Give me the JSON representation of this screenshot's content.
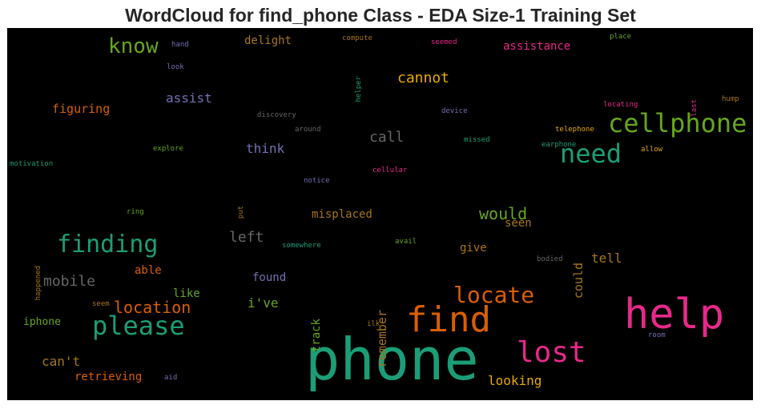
{
  "chart_data": {
    "type": "wordcloud",
    "title": "WordCloud for find_phone Class - EDA Size-1 Training Set",
    "background": "#000000",
    "words": [
      {
        "text": "phone",
        "color": "#1b9e77",
        "weight": 1.0
      },
      {
        "text": "help",
        "color": "#e7298a",
        "weight": 0.82
      },
      {
        "text": "find",
        "color": "#d95f02",
        "weight": 0.72
      },
      {
        "text": "cellphone",
        "color": "#66a61e",
        "weight": 0.55
      },
      {
        "text": "lost",
        "color": "#e7298a",
        "weight": 0.6
      },
      {
        "text": "need",
        "color": "#1b9e77",
        "weight": 0.55
      },
      {
        "text": "please",
        "color": "#1b9e77",
        "weight": 0.55
      },
      {
        "text": "finding",
        "color": "#1b9e77",
        "weight": 0.5
      },
      {
        "text": "locate",
        "color": "#d95f02",
        "weight": 0.45
      },
      {
        "text": "know",
        "color": "#66a61e",
        "weight": 0.45
      },
      {
        "text": "location",
        "color": "#d95f02",
        "weight": 0.35
      },
      {
        "text": "mobile",
        "color": "#666666",
        "weight": 0.3
      },
      {
        "text": "cannot",
        "color": "#e6ab02",
        "weight": 0.3
      },
      {
        "text": "would",
        "color": "#66a61e",
        "weight": 0.33
      },
      {
        "text": "call",
        "color": "#666666",
        "weight": 0.3
      },
      {
        "text": "left",
        "color": "#666666",
        "weight": 0.28
      },
      {
        "text": "looking",
        "color": "#e6ab02",
        "weight": 0.25
      },
      {
        "text": "think",
        "color": "#7570b3",
        "weight": 0.27
      },
      {
        "text": "assist",
        "color": "#7570b3",
        "weight": 0.27
      },
      {
        "text": "remember",
        "color": "#a6761d",
        "weight": 0.25
      },
      {
        "text": "could",
        "color": "#a6761d",
        "weight": 0.25
      },
      {
        "text": "tell",
        "color": "#a6761d",
        "weight": 0.25
      },
      {
        "text": "can't",
        "color": "#a6761d",
        "weight": 0.25
      },
      {
        "text": "i've",
        "color": "#66a61e",
        "weight": 0.25
      },
      {
        "text": "track",
        "color": "#66a61e",
        "weight": 0.22
      },
      {
        "text": "figuring",
        "color": "#d95f02",
        "weight": 0.23
      },
      {
        "text": "retrieving",
        "color": "#d95f02",
        "weight": 0.22
      },
      {
        "text": "misplaced",
        "color": "#a6761d",
        "weight": 0.22
      },
      {
        "text": "assistance",
        "color": "#e7298a",
        "weight": 0.22
      },
      {
        "text": "delight",
        "color": "#a6761d",
        "weight": 0.22
      },
      {
        "text": "give",
        "color": "#a6761d",
        "weight": 0.22
      },
      {
        "text": "seen",
        "color": "#a6761d",
        "weight": 0.22
      },
      {
        "text": "found",
        "color": "#7570b3",
        "weight": 0.22
      },
      {
        "text": "able",
        "color": "#d95f02",
        "weight": 0.22
      },
      {
        "text": "like",
        "color": "#66a61e",
        "weight": 0.22
      },
      {
        "text": "iphone",
        "color": "#66a61e",
        "weight": 0.2
      },
      {
        "text": "telephone",
        "color": "#e6ab02",
        "weight": 0.12
      },
      {
        "text": "earphone",
        "color": "#1b9e77",
        "weight": 0.12
      },
      {
        "text": "allow",
        "color": "#e6ab02",
        "weight": 0.12
      },
      {
        "text": "missed",
        "color": "#1b9e77",
        "weight": 0.12
      },
      {
        "text": "device",
        "color": "#7570b3",
        "weight": 0.12
      },
      {
        "text": "locating",
        "color": "#e7298a",
        "weight": 0.12
      },
      {
        "text": "last",
        "color": "#e7298a",
        "weight": 0.12
      },
      {
        "text": "hump",
        "color": "#a6761d",
        "weight": 0.12
      },
      {
        "text": "discovery",
        "color": "#666666",
        "weight": 0.12
      },
      {
        "text": "around",
        "color": "#666666",
        "weight": 0.12
      },
      {
        "text": "explore",
        "color": "#66a61e",
        "weight": 0.12
      },
      {
        "text": "motivation",
        "color": "#1b9e77",
        "weight": 0.12
      },
      {
        "text": "cellular",
        "color": "#e7298a",
        "weight": 0.12
      },
      {
        "text": "notice",
        "color": "#7570b3",
        "weight": 0.12
      },
      {
        "text": "ring",
        "color": "#66a61e",
        "weight": 0.12
      },
      {
        "text": "put",
        "color": "#a6761d",
        "weight": 0.12
      },
      {
        "text": "happened",
        "color": "#a6761d",
        "weight": 0.12
      },
      {
        "text": "somewhere",
        "color": "#1b9e77",
        "weight": 0.12
      },
      {
        "text": "avail",
        "color": "#66a61e",
        "weight": 0.12
      },
      {
        "text": "bodied",
        "color": "#666666",
        "weight": 0.12
      },
      {
        "text": "seem",
        "color": "#a6761d",
        "weight": 0.12
      },
      {
        "text": "ilk",
        "color": "#a6761d",
        "weight": 0.12
      },
      {
        "text": "aid",
        "color": "#7570b3",
        "weight": 0.12
      },
      {
        "text": "room",
        "color": "#7570b3",
        "weight": 0.12
      },
      {
        "text": "hand",
        "color": "#7570b3",
        "weight": 0.12
      },
      {
        "text": "look",
        "color": "#7570b3",
        "weight": 0.12
      },
      {
        "text": "helper",
        "color": "#1b9e77",
        "weight": 0.12
      },
      {
        "text": "compute",
        "color": "#a6761d",
        "weight": 0.12
      },
      {
        "text": "seemed",
        "color": "#e7298a",
        "weight": 0.12
      },
      {
        "text": "place",
        "color": "#66a61e",
        "weight": 0.12
      }
    ]
  }
}
